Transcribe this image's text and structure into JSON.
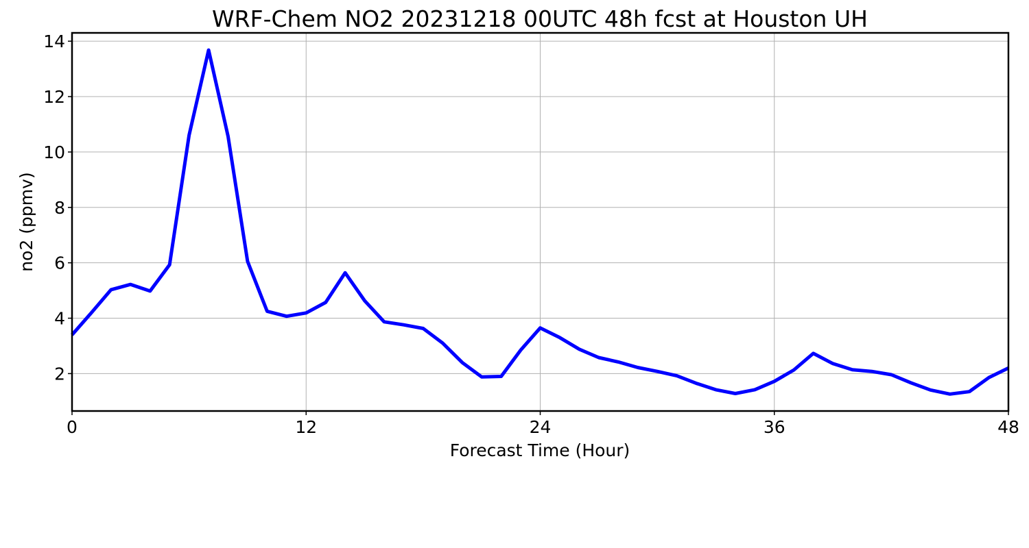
{
  "chart_data": {
    "type": "line",
    "title": "WRF-Chem NO2  20231218 00UTC 48h fcst at Houston UH",
    "xlabel": "Forecast Time (Hour)",
    "ylabel": "no2  (ppmv)",
    "xlim": [
      0,
      48
    ],
    "ylim": [
      0.65,
      14.3
    ],
    "xticks": [
      0,
      12,
      24,
      36,
      48
    ],
    "yticks": [
      2,
      4,
      6,
      8,
      10,
      12,
      14
    ],
    "grid": true,
    "series": [
      {
        "color": "#0000ff",
        "x": [
          0,
          1,
          2,
          3,
          4,
          5,
          6,
          7,
          8,
          9,
          10,
          11,
          12,
          13,
          14,
          15,
          16,
          17,
          18,
          19,
          20,
          21,
          22,
          23,
          24,
          25,
          26,
          27,
          28,
          29,
          30,
          31,
          32,
          33,
          34,
          35,
          36,
          37,
          38,
          39,
          40,
          41,
          42,
          43,
          44,
          45,
          46,
          47,
          48
        ],
        "y": [
          3.4,
          4.2,
          5.03,
          5.22,
          4.98,
          5.93,
          10.6,
          13.68,
          10.56,
          6.05,
          4.25,
          4.07,
          4.19,
          4.57,
          5.64,
          4.63,
          3.87,
          3.76,
          3.63,
          3.1,
          2.4,
          1.88,
          1.9,
          2.85,
          3.65,
          3.3,
          2.88,
          2.58,
          2.42,
          2.22,
          2.08,
          1.92,
          1.65,
          1.42,
          1.28,
          1.42,
          1.72,
          2.13,
          2.73,
          2.36,
          2.14,
          2.08,
          1.96,
          1.67,
          1.41,
          1.26,
          1.35,
          1.86,
          2.2
        ]
      }
    ]
  }
}
